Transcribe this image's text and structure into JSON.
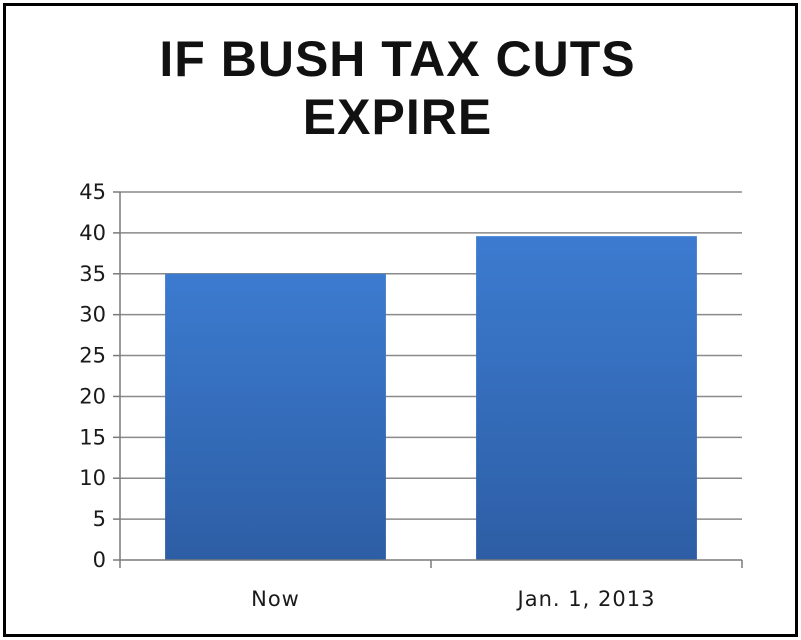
{
  "chart_data": {
    "type": "bar",
    "title_lines": [
      "IF BUSH TAX CUTS",
      "EXPIRE"
    ],
    "categories": [
      "Now",
      "Jan. 1, 2013"
    ],
    "values": [
      35,
      39.6
    ],
    "ylim": [
      0,
      45
    ],
    "yticks": [
      0,
      5,
      10,
      15,
      20,
      25,
      30,
      35,
      40,
      45
    ],
    "grid": true,
    "legend": "none",
    "bar_color_top": "#3c7bd0",
    "bar_color_bottom": "#2d5ea5"
  }
}
